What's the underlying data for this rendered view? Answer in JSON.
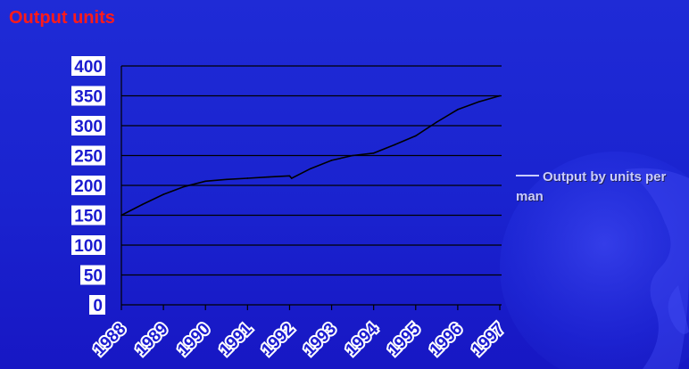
{
  "chart_data": {
    "type": "line",
    "ylabel": "Output units",
    "xlabel": "",
    "title": "",
    "categories": [
      "1988",
      "1989",
      "1990",
      "1991",
      "1992",
      "1993",
      "1994",
      "1995",
      "1996",
      "1997"
    ],
    "yticks": [
      "0",
      "50",
      "100",
      "150",
      "200",
      "250",
      "300",
      "350",
      "400"
    ],
    "ylim": [
      0,
      400
    ],
    "grid": true,
    "legend_position": "right",
    "series": [
      {
        "name": "Output by units per man",
        "color": "#000000",
        "points": [
          {
            "x": 1988.0,
            "y": 150
          },
          {
            "x": 1988.5,
            "y": 168
          },
          {
            "x": 1989.0,
            "y": 185
          },
          {
            "x": 1989.5,
            "y": 198
          },
          {
            "x": 1990.0,
            "y": 207
          },
          {
            "x": 1990.5,
            "y": 210
          },
          {
            "x": 1991.0,
            "y": 212
          },
          {
            "x": 1991.5,
            "y": 214
          },
          {
            "x": 1992.0,
            "y": 216
          },
          {
            "x": 1992.05,
            "y": 212
          },
          {
            "x": 1992.5,
            "y": 228
          },
          {
            "x": 1993.0,
            "y": 242
          },
          {
            "x": 1993.5,
            "y": 250
          },
          {
            "x": 1994.0,
            "y": 254
          },
          {
            "x": 1994.5,
            "y": 268
          },
          {
            "x": 1995.0,
            "y": 283
          },
          {
            "x": 1995.5,
            "y": 306
          },
          {
            "x": 1996.0,
            "y": 327
          },
          {
            "x": 1996.5,
            "y": 340
          },
          {
            "x": 1997.0,
            "y": 350
          }
        ]
      }
    ]
  },
  "colors": {
    "background": "#1a23cf",
    "axis_label": "#ff1a1a",
    "tick_label_box": "#ffffff",
    "tick_label_text": "#1b1bd0",
    "gridline": "#000000"
  }
}
